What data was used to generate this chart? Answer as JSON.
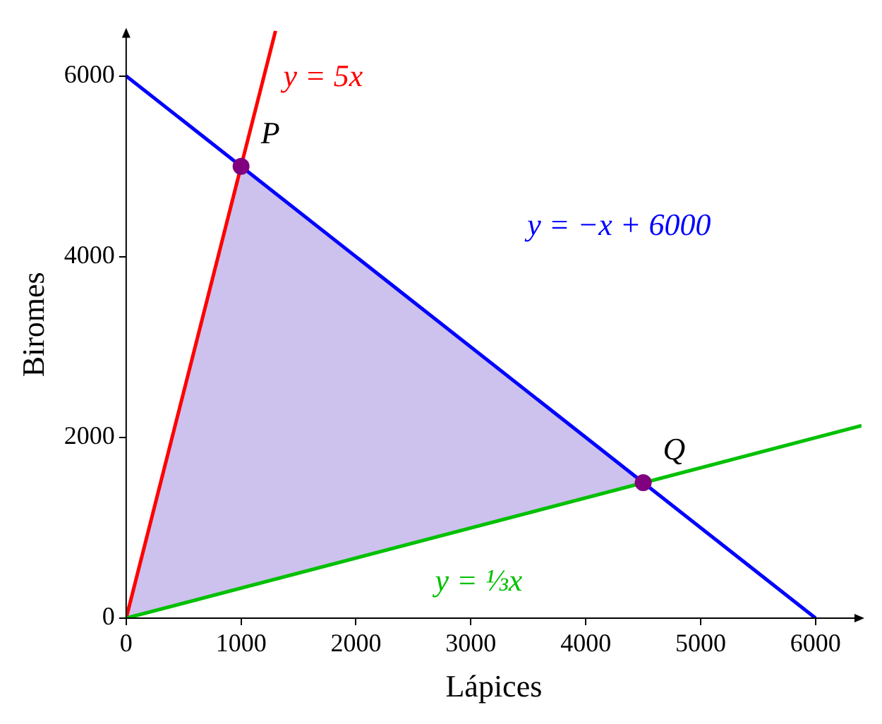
{
  "chart_data": {
    "type": "line",
    "xlabel": "Lápices",
    "ylabel": "Biromes",
    "xlim": [
      0,
      6400
    ],
    "ylim": [
      0,
      6500
    ],
    "xticks": [
      0,
      1000,
      2000,
      3000,
      4000,
      5000,
      6000
    ],
    "yticks": [
      0,
      2000,
      4000,
      6000
    ],
    "grid": false,
    "legend": false,
    "marker": "none",
    "line_style": "solid",
    "series": [
      {
        "type": "area",
        "color": "#cdc1ee",
        "x": [
          0,
          1000,
          4500
        ],
        "values": [
          0,
          5000,
          1500
        ]
      },
      {
        "name": "y = 5x",
        "color": "#ff0000",
        "x": [
          0,
          1300
        ],
        "values": [
          0,
          6500
        ]
      },
      {
        "name": "y = −x + 6000",
        "color": "#0000ff",
        "x": [
          0,
          6000
        ],
        "values": [
          6000,
          0
        ]
      },
      {
        "name": "y = ⅓x",
        "color": "#00c000",
        "x": [
          0,
          6400
        ],
        "values": [
          0,
          2130
        ]
      },
      {
        "type": "scatter",
        "color": "#800080",
        "marker": "circle",
        "x": [
          1000,
          4500
        ],
        "values": [
          5000,
          1500
        ]
      }
    ],
    "annotations": [
      {
        "text": "P",
        "x": 1000,
        "y": 5000
      },
      {
        "text": "Q",
        "x": 4500,
        "y": 1500
      }
    ]
  }
}
